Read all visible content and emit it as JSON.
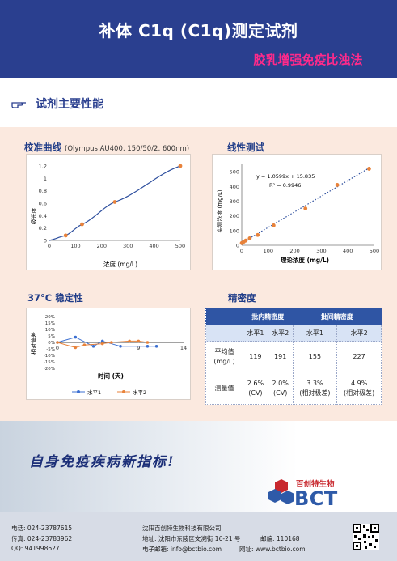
{
  "header": {
    "title": "补体 C1q (C1q)测定试剂",
    "subtitle": "胶乳增强免疫比浊法"
  },
  "section": {
    "title": "试剂主要性能",
    "icon": "pointing-hand-icon"
  },
  "calibration": {
    "title": "校准曲线",
    "note": "(Olympus AU400, 150/50/2, 600nm)",
    "ylabel": "吸光度",
    "xlabel": "浓度 (mg/L)"
  },
  "linearity": {
    "title": "线性测试",
    "equation": "y = 1.0599x + 15.835",
    "r2": "R² = 0.9946",
    "ylabel": "实测浓度 (mg/L)",
    "xlabel": "理论浓度 (mg/L)"
  },
  "stability": {
    "title": "37°C 稳定性",
    "ylabel": "相对偏差",
    "xlabel": "时间 (天)",
    "legend1": "水平1",
    "legend2": "水平2"
  },
  "precision": {
    "title": "精密度",
    "col_within": "批内精密度",
    "col_between": "批间精密度",
    "level1": "水平1",
    "level2": "水平2",
    "avg_label_1": "平均值",
    "avg_label_2": "(mg/L)",
    "avg_values": [
      "119",
      "191",
      "155",
      "227"
    ],
    "meas_label": "测量值",
    "meas_values": [
      "2.6%",
      "2.0%",
      "3.3%",
      "4.9%"
    ],
    "meas_units": [
      "(CV)",
      "(CV)",
      "(相对极差)",
      "(相对极差)"
    ]
  },
  "banner": {
    "slogan": "自身免疫疾病新指标!"
  },
  "brand": {
    "name_cn": "百创特生物",
    "name_en": "BCT"
  },
  "footer": {
    "tel": "电话: 024-23787615",
    "fax": "传真: 024-23783962",
    "qq": "QQ: 941998627",
    "company": "沈阳百创特生物科技有限公司",
    "address": "地址: 沈阳市东陵区文溯街 16-21 号",
    "postcode": "邮编: 110168",
    "email": "电子邮箱: info@bctbio.com",
    "website": "网址: www.bctbio.com"
  },
  "colors": {
    "header": "#2a3f8f",
    "accent": "#ff2a8a",
    "panel": "#fbe9df",
    "series_blue": "#3b6fd1",
    "series_orange": "#e8823a"
  },
  "chart_data": [
    {
      "type": "line",
      "name": "calibration",
      "x": [
        0,
        62.5,
        125,
        250,
        500
      ],
      "y": [
        0.0,
        0.08,
        0.26,
        0.62,
        1.2
      ],
      "xticks": [
        "0",
        "100",
        "200",
        "300",
        "400",
        "500"
      ],
      "yticks": [
        "0",
        "0.2",
        "0.4",
        "0.6",
        "0.8",
        "1",
        "1.2"
      ],
      "xlim": [
        0,
        500
      ],
      "ylim": [
        0,
        1.2
      ]
    },
    {
      "type": "scatter",
      "name": "linearity",
      "x": [
        0,
        7.5,
        15,
        30,
        60,
        120,
        240,
        360,
        480
      ],
      "y": [
        15,
        24,
        32,
        47,
        70,
        135,
        250,
        410,
        520
      ],
      "trend": {
        "slope": 1.0599,
        "intercept": 15.835
      },
      "xticks": [
        "0",
        "100",
        "200",
        "300",
        "400",
        "500"
      ],
      "yticks": [
        "0",
        "100",
        "200",
        "300",
        "400",
        "500"
      ],
      "xlim": [
        0,
        500
      ],
      "ylim": [
        0,
        550
      ]
    },
    {
      "type": "line",
      "name": "stability",
      "x": [
        0,
        1,
        2,
        3,
        4,
        5,
        6,
        7,
        8,
        9,
        10,
        11,
        12,
        13,
        14
      ],
      "series": [
        {
          "name": "水平1",
          "x": [
            0,
            2,
            4,
            5,
            7,
            10,
            11
          ],
          "values": [
            0,
            4,
            -3,
            1,
            -3,
            -3,
            -3
          ]
        },
        {
          "name": "水平2",
          "x": [
            0,
            2,
            3,
            5,
            6,
            8,
            9,
            10
          ],
          "values": [
            0,
            -4,
            -2,
            -1,
            0,
            1,
            1,
            0
          ]
        }
      ],
      "xticks": [
        "0",
        "9",
        "14"
      ],
      "yticks": [
        "20%",
        "15%",
        "10%",
        "5%",
        "0%",
        "-5%",
        "-10%",
        "-15%",
        "-20%"
      ],
      "ylim": [
        -20,
        20
      ]
    }
  ]
}
